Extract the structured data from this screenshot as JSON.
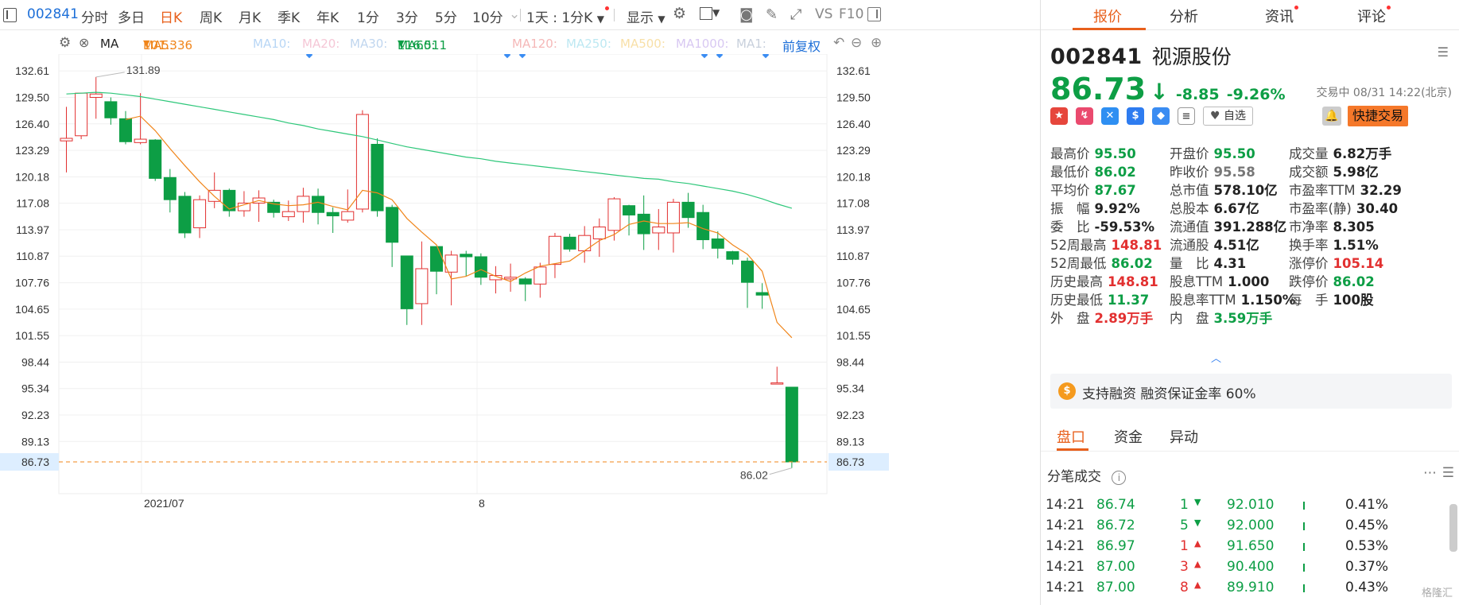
{
  "toolbar": {
    "stock_code": "002841",
    "periods": [
      "分时",
      "多日",
      "日K",
      "周K",
      "月K",
      "季K",
      "年K",
      "1分",
      "3分",
      "5分",
      "10分"
    ],
    "active_period": "日K",
    "range": "1天 : 1分K",
    "display": "显示",
    "tools": [
      "VS",
      "F10"
    ]
  },
  "ma_bar": {
    "type": "MA",
    "ma5_label": "MA5:",
    "ma5_value": "101.336",
    "ma10": "MA10:",
    "ma20": "MA20:",
    "ma30": "MA30:",
    "ma60_label": "MA60:",
    "ma60_value": "116.511",
    "ma120": "MA120:",
    "ma250": "MA250:",
    "ma500": "MA500:",
    "ma1000": "MA1000:",
    "ma1": "MA1:",
    "adjust": "前复权",
    "colors": {
      "ma5": "#f0851a",
      "ma60": "#2ec77a",
      "up": "#e23030",
      "down": "#0d9e45"
    }
  },
  "chart_data": {
    "type": "candlestick",
    "y_ticks": [
      "132.61",
      "129.50",
      "126.40",
      "123.29",
      "120.18",
      "117.08",
      "113.97",
      "110.87",
      "107.76",
      "104.65",
      "101.55",
      "98.44",
      "95.34",
      "92.23",
      "89.13",
      "86.73"
    ],
    "ylim": [
      84.8,
      134.6
    ],
    "x_labels": [
      "2021/07",
      "8"
    ],
    "max_label": "131.89",
    "min_label": "86.02",
    "current_price_label": "86.73",
    "candles": [
      {
        "o": 124.4,
        "h": 128.4,
        "l": 120.7,
        "c": 124.7
      },
      {
        "o": 125.0,
        "h": 130.0,
        "l": 124.6,
        "c": 130.0
      },
      {
        "o": 129.5,
        "h": 131.9,
        "l": 127.0,
        "c": 129.9
      },
      {
        "o": 129.0,
        "h": 129.5,
        "l": 126.3,
        "c": 127.1
      },
      {
        "o": 127.0,
        "h": 127.9,
        "l": 124.0,
        "c": 124.3
      },
      {
        "o": 124.2,
        "h": 130.0,
        "l": 124.0,
        "c": 124.6
      },
      {
        "o": 124.5,
        "h": 124.6,
        "l": 119.7,
        "c": 120.0
      },
      {
        "o": 120.1,
        "h": 121.1,
        "l": 116.0,
        "c": 117.5
      },
      {
        "o": 117.9,
        "h": 118.4,
        "l": 113.0,
        "c": 113.6
      },
      {
        "o": 114.2,
        "h": 118.0,
        "l": 113.0,
        "c": 117.5
      },
      {
        "o": 117.3,
        "h": 120.7,
        "l": 116.5,
        "c": 118.6
      },
      {
        "o": 118.6,
        "h": 118.8,
        "l": 115.5,
        "c": 116.2
      },
      {
        "o": 116.2,
        "h": 118.5,
        "l": 115.5,
        "c": 117.1
      },
      {
        "o": 117.1,
        "h": 118.6,
        "l": 114.9,
        "c": 117.7
      },
      {
        "o": 117.2,
        "h": 117.5,
        "l": 115.4,
        "c": 116.0
      },
      {
        "o": 115.5,
        "h": 117.4,
        "l": 115.0,
        "c": 116.1
      },
      {
        "o": 116.1,
        "h": 118.9,
        "l": 114.8,
        "c": 117.9
      },
      {
        "o": 117.9,
        "h": 118.8,
        "l": 114.6,
        "c": 116.0
      },
      {
        "o": 116.0,
        "h": 116.6,
        "l": 113.6,
        "c": 115.6
      },
      {
        "o": 115.1,
        "h": 118.7,
        "l": 114.8,
        "c": 116.1
      },
      {
        "o": 116.4,
        "h": 128.0,
        "l": 116.0,
        "c": 127.5
      },
      {
        "o": 124.0,
        "h": 124.7,
        "l": 115.5,
        "c": 116.2
      },
      {
        "o": 116.6,
        "h": 116.9,
        "l": 109.6,
        "c": 112.5
      },
      {
        "o": 110.9,
        "h": 110.9,
        "l": 102.8,
        "c": 104.7
      },
      {
        "o": 105.3,
        "h": 112.6,
        "l": 102.8,
        "c": 109.4
      },
      {
        "o": 112.0,
        "h": 112.0,
        "l": 106.4,
        "c": 109.1
      },
      {
        "o": 109.0,
        "h": 111.5,
        "l": 105.1,
        "c": 111.0
      },
      {
        "o": 111.1,
        "h": 111.5,
        "l": 108.5,
        "c": 110.8
      },
      {
        "o": 110.8,
        "h": 111.2,
        "l": 107.5,
        "c": 108.4
      },
      {
        "o": 108.1,
        "h": 109.7,
        "l": 106.5,
        "c": 108.6
      },
      {
        "o": 108.2,
        "h": 110.0,
        "l": 106.7,
        "c": 108.4
      },
      {
        "o": 108.2,
        "h": 108.4,
        "l": 105.6,
        "c": 107.6
      },
      {
        "o": 107.6,
        "h": 110.1,
        "l": 106.0,
        "c": 109.6
      },
      {
        "o": 109.9,
        "h": 113.6,
        "l": 108.3,
        "c": 113.2
      },
      {
        "o": 113.1,
        "h": 113.5,
        "l": 111.4,
        "c": 111.7
      },
      {
        "o": 111.5,
        "h": 114.4,
        "l": 110.1,
        "c": 113.3
      },
      {
        "o": 112.9,
        "h": 115.3,
        "l": 110.8,
        "c": 114.3
      },
      {
        "o": 113.9,
        "h": 117.8,
        "l": 112.7,
        "c": 117.6
      },
      {
        "o": 116.8,
        "h": 116.9,
        "l": 113.3,
        "c": 115.7
      },
      {
        "o": 115.8,
        "h": 118.0,
        "l": 111.6,
        "c": 113.5
      },
      {
        "o": 113.6,
        "h": 116.4,
        "l": 111.6,
        "c": 114.3
      },
      {
        "o": 113.6,
        "h": 117.6,
        "l": 111.3,
        "c": 117.2
      },
      {
        "o": 117.2,
        "h": 118.3,
        "l": 114.2,
        "c": 115.4
      },
      {
        "o": 116.0,
        "h": 116.9,
        "l": 111.7,
        "c": 112.8
      },
      {
        "o": 112.9,
        "h": 113.8,
        "l": 110.6,
        "c": 111.8
      },
      {
        "o": 111.4,
        "h": 111.5,
        "l": 109.9,
        "c": 110.5
      },
      {
        "o": 110.3,
        "h": 110.7,
        "l": 104.8,
        "c": 107.8
      },
      {
        "o": 106.6,
        "h": 107.7,
        "l": 104.7,
        "c": 106.3
      },
      {
        "o": 96.0,
        "h": 97.9,
        "l": 96.0,
        "c": 96.0
      },
      {
        "o": 95.5,
        "h": 95.5,
        "l": 86.02,
        "c": 86.73
      }
    ],
    "ma5": [
      null,
      null,
      null,
      null,
      126.9,
      127.3,
      125.6,
      123.5,
      121.5,
      119.6,
      117.9,
      116.4,
      116.9,
      117.4,
      117.0,
      116.8,
      116.9,
      117.2,
      116.7,
      116.3,
      118.6,
      118.3,
      117.5,
      115.3,
      113.7,
      112.2,
      108.2,
      108.5,
      109.3,
      108.5,
      107.9,
      108.9,
      109.7,
      110.0,
      110.3,
      111.5,
      112.7,
      113.4,
      114.6,
      115.0,
      114.7,
      114.7,
      114.8,
      114.1,
      113.6,
      112.2,
      111.1,
      109.1,
      103.1,
      101.3
    ],
    "ma60": [
      129.9,
      130.0,
      130.1,
      130.0,
      129.8,
      129.6,
      129.3,
      129.0,
      128.7,
      128.4,
      128.1,
      127.8,
      127.5,
      127.2,
      126.9,
      126.5,
      126.2,
      125.8,
      125.5,
      125.2,
      124.9,
      124.5,
      124.1,
      123.7,
      123.4,
      123.1,
      122.8,
      122.5,
      122.3,
      122.0,
      121.8,
      121.6,
      121.4,
      121.2,
      121.0,
      120.8,
      120.6,
      120.4,
      120.2,
      120.0,
      119.9,
      119.6,
      119.4,
      119.1,
      118.8,
      118.5,
      118.1,
      117.6,
      117.0,
      116.5
    ]
  },
  "quote_tabs": [
    "报价",
    "分析",
    "资讯",
    "评论"
  ],
  "stock": {
    "code": "002841",
    "name": "视源股份",
    "price": "86.73",
    "change": "-8.85",
    "change_pct": "-9.26%",
    "status": "交易中 08/31 14:22(北京)",
    "watch_label": "自选",
    "trade_label": "快捷交易"
  },
  "quote": [
    [
      {
        "k": "最高价",
        "v": "95.50",
        "c": "green"
      },
      {
        "k": "开盘价",
        "v": "95.50",
        "c": "green"
      },
      {
        "k": "成交量",
        "v": "6.82万手",
        "c": ""
      }
    ],
    [
      {
        "k": "最低价",
        "v": "86.02",
        "c": "green"
      },
      {
        "k": "昨收价",
        "v": "95.58",
        "c": "gray"
      },
      {
        "k": "成交额",
        "v": "5.98亿",
        "c": ""
      }
    ],
    [
      {
        "k": "平均价",
        "v": "87.67",
        "c": "green"
      },
      {
        "k": "总市值",
        "v": "578.10亿",
        "c": ""
      },
      {
        "k": "市盈率TTM",
        "v": "32.29",
        "c": ""
      }
    ],
    [
      {
        "k": "振　幅",
        "v": "9.92%",
        "c": ""
      },
      {
        "k": "总股本",
        "v": "6.67亿",
        "c": ""
      },
      {
        "k": "市盈率(静)",
        "v": "30.40",
        "c": ""
      }
    ],
    [
      {
        "k": "委　比",
        "v": "-59.53%",
        "c": ""
      },
      {
        "k": "流通值",
        "v": "391.288亿",
        "c": ""
      },
      {
        "k": "市净率",
        "v": "8.305",
        "c": ""
      }
    ],
    [
      {
        "k": "52周最高",
        "v": "148.81",
        "c": "red"
      },
      {
        "k": "流通股",
        "v": "4.51亿",
        "c": ""
      },
      {
        "k": "换手率",
        "v": "1.51%",
        "c": ""
      }
    ],
    [
      {
        "k": "52周最低",
        "v": "86.02",
        "c": "green"
      },
      {
        "k": "量　比",
        "v": "4.31",
        "c": ""
      },
      {
        "k": "涨停价",
        "v": "105.14",
        "c": "red"
      }
    ],
    [
      {
        "k": "历史最高",
        "v": "148.81",
        "c": "red"
      },
      {
        "k": "股息TTM",
        "v": "1.000",
        "c": ""
      },
      {
        "k": "跌停价",
        "v": "86.02",
        "c": "green"
      }
    ],
    [
      {
        "k": "历史最低",
        "v": "11.37",
        "c": "green"
      },
      {
        "k": "股息率TTM",
        "v": "1.150%",
        "c": ""
      },
      {
        "k": "每　手",
        "v": "100股",
        "c": ""
      }
    ],
    [
      {
        "k": "外　盘",
        "v": "2.89万手",
        "c": "red"
      },
      {
        "k": "内　盘",
        "v": "3.59万手",
        "c": "green"
      },
      {
        "k": "",
        "v": "",
        "c": ""
      }
    ]
  ],
  "margin_text": "支持融资 融资保证金率 60%",
  "sub_tabs": [
    "盘口",
    "资金",
    "异动"
  ],
  "ticks_title": "分笔成交",
  "ticks": [
    {
      "t": "14:21",
      "p": "86.74",
      "n": "1",
      "dir": "down",
      "p2": "92.010",
      "pct": "0.41%"
    },
    {
      "t": "14:21",
      "p": "86.72",
      "n": "5",
      "dir": "down",
      "p2": "92.000",
      "pct": "0.45%"
    },
    {
      "t": "14:21",
      "p": "86.97",
      "n": "1",
      "dir": "up",
      "p2": "91.650",
      "pct": "0.53%"
    },
    {
      "t": "14:21",
      "p": "87.00",
      "n": "3",
      "dir": "up",
      "p2": "90.400",
      "pct": "0.37%"
    },
    {
      "t": "14:21",
      "p": "87.00",
      "n": "8",
      "dir": "up",
      "p2": "89.910",
      "pct": "0.43%"
    }
  ],
  "watermark": "格隆汇"
}
